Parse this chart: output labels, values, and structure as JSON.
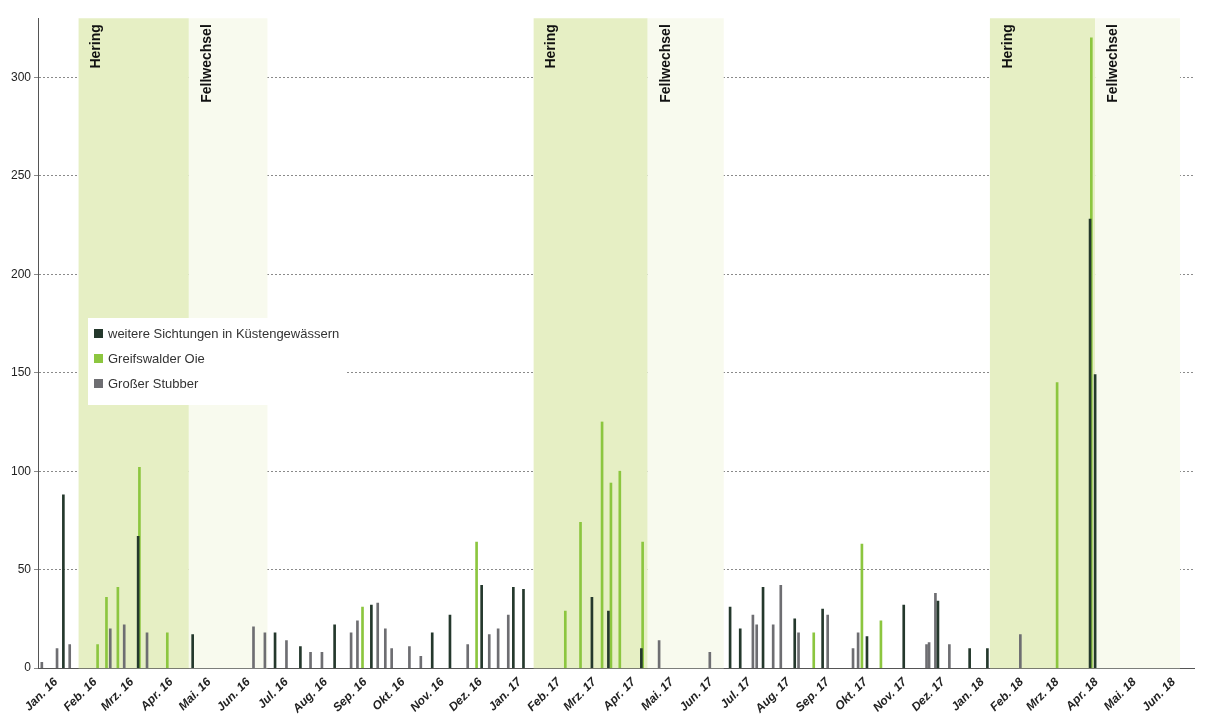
{
  "chart_data": {
    "type": "bar",
    "xlim": [
      "2016-01-01",
      "2018-07-01"
    ],
    "ylim": [
      0,
      330
    ],
    "yticks": [
      0,
      50,
      100,
      150,
      200,
      250,
      300
    ],
    "xticks": [
      {
        "value": "2016-01-15",
        "label": "Jan. 16"
      },
      {
        "value": "2016-02-15",
        "label": "Feb. 16"
      },
      {
        "value": "2016-03-15",
        "label": "Mrz. 16"
      },
      {
        "value": "2016-04-15",
        "label": "Apr. 16"
      },
      {
        "value": "2016-05-15",
        "label": "Mai. 16"
      },
      {
        "value": "2016-06-15",
        "label": "Jun. 16"
      },
      {
        "value": "2016-07-15",
        "label": "Jul. 16"
      },
      {
        "value": "2016-08-15",
        "label": "Aug. 16"
      },
      {
        "value": "2016-09-15",
        "label": "Sep. 16"
      },
      {
        "value": "2016-10-15",
        "label": "Okt. 16"
      },
      {
        "value": "2016-11-15",
        "label": "Nov. 16"
      },
      {
        "value": "2016-12-15",
        "label": "Dez. 16"
      },
      {
        "value": "2017-01-15",
        "label": "Jan. 17"
      },
      {
        "value": "2017-02-15",
        "label": "Feb. 17"
      },
      {
        "value": "2017-03-15",
        "label": "Mrz. 17"
      },
      {
        "value": "2017-04-15",
        "label": "Apr. 17"
      },
      {
        "value": "2017-05-15",
        "label": "Mai. 17"
      },
      {
        "value": "2017-06-15",
        "label": "Jun. 17"
      },
      {
        "value": "2017-07-15",
        "label": "Jul. 17"
      },
      {
        "value": "2017-08-15",
        "label": "Aug. 17"
      },
      {
        "value": "2017-09-15",
        "label": "Sep. 17"
      },
      {
        "value": "2017-10-15",
        "label": "Okt. 17"
      },
      {
        "value": "2017-11-15",
        "label": "Nov. 17"
      },
      {
        "value": "2017-12-15",
        "label": "Dez. 17"
      },
      {
        "value": "2018-01-15",
        "label": "Jan. 18"
      },
      {
        "value": "2018-02-15",
        "label": "Feb. 18"
      },
      {
        "value": "2018-03-15",
        "label": "Mrz. 18"
      },
      {
        "value": "2018-04-15",
        "label": "Apr. 18"
      },
      {
        "value": "2018-05-15",
        "label": "Mai. 18"
      },
      {
        "value": "2018-06-15",
        "label": "Jun. 18"
      }
    ],
    "grid": "y",
    "legend": "left",
    "bands": [
      {
        "axis": "x",
        "from": "2016-02-02",
        "to": "2016-04-29",
        "label": "Hering",
        "color": "#e6efc4"
      },
      {
        "axis": "x",
        "from": "2016-04-29",
        "to": "2016-06-30",
        "label": "Fellwechsel",
        "color": "#f8faee"
      },
      {
        "axis": "x",
        "from": "2017-01-26",
        "to": "2017-04-26",
        "label": "Hering",
        "color": "#e6efc4"
      },
      {
        "axis": "x",
        "from": "2017-04-26",
        "to": "2017-06-25",
        "label": "Fellwechsel",
        "color": "#f8faee"
      },
      {
        "axis": "x",
        "from": "2018-01-21",
        "to": "2018-04-14",
        "label": "Hering",
        "color": "#e6efc4"
      },
      {
        "axis": "x",
        "from": "2018-04-14",
        "to": "2018-06-20",
        "label": "Fellwechsel",
        "color": "#f8faee"
      }
    ],
    "series": [
      {
        "name": "weitere Sichtungen in Küstengewässern",
        "color": "#24382c",
        "x": [
          "2016-01-21",
          "2016-03-20",
          "2016-05-02",
          "2016-07-06",
          "2016-07-26",
          "2016-08-22",
          "2016-09-20",
          "2016-11-07",
          "2016-11-21",
          "2016-12-16",
          "2017-01-10",
          "2017-01-18",
          "2017-03-13",
          "2017-03-26",
          "2017-04-21",
          "2017-06-30",
          "2017-07-08",
          "2017-07-26",
          "2017-08-20",
          "2017-09-11",
          "2017-10-16",
          "2017-11-14",
          "2017-12-11",
          "2018-01-05",
          "2018-01-19",
          "2018-04-10",
          "2018-04-14"
        ],
        "values": [
          88,
          67,
          17,
          18,
          11,
          22,
          32,
          18,
          27,
          42,
          41,
          40,
          36,
          29,
          10,
          31,
          20,
          41,
          25,
          30,
          16,
          32,
          34,
          10,
          10,
          228,
          149
        ]
      },
      {
        "name": "Greifswalder Oie",
        "color": "#8cc63f",
        "x": [
          "2016-02-17",
          "2016-02-24",
          "2016-03-04",
          "2016-03-21",
          "2016-04-12",
          "2016-09-13",
          "2016-12-12",
          "2017-02-20",
          "2017-03-04",
          "2017-03-21",
          "2017-03-28",
          "2017-04-04",
          "2017-04-22",
          "2017-09-04",
          "2017-10-12",
          "2017-10-27",
          "2018-03-15",
          "2018-04-11"
        ],
        "values": [
          12,
          36,
          41,
          102,
          18,
          31,
          64,
          29,
          74,
          125,
          94,
          100,
          64,
          18,
          63,
          24,
          145,
          320
        ]
      },
      {
        "name": "Großer Stubber",
        "color": "#6e6e72",
        "x": [
          "2016-01-04",
          "2016-01-16",
          "2016-01-26",
          "2016-02-27",
          "2016-03-09",
          "2016-03-27",
          "2016-06-19",
          "2016-06-28",
          "2016-07-15",
          "2016-08-03",
          "2016-08-12",
          "2016-09-04",
          "2016-09-09",
          "2016-09-25",
          "2016-10-01",
          "2016-10-06",
          "2016-10-20",
          "2016-10-29",
          "2016-12-05",
          "2016-12-22",
          "2016-12-29",
          "2017-01-06",
          "2017-05-05",
          "2017-06-14",
          "2017-07-18",
          "2017-07-21",
          "2017-08-03",
          "2017-08-09",
          "2017-08-23",
          "2017-09-15",
          "2017-10-05",
          "2017-10-09",
          "2017-12-02",
          "2017-12-04",
          "2017-12-09",
          "2017-12-20",
          "2018-02-14"
        ],
        "values": [
          3,
          10,
          12,
          20,
          22,
          18,
          21,
          18,
          14,
          8,
          8,
          18,
          24,
          33,
          20,
          10,
          11,
          6,
          12,
          17,
          20,
          27,
          14,
          8,
          27,
          22,
          22,
          42,
          18,
          27,
          10,
          18,
          12,
          13,
          38,
          12,
          17
        ]
      }
    ]
  }
}
